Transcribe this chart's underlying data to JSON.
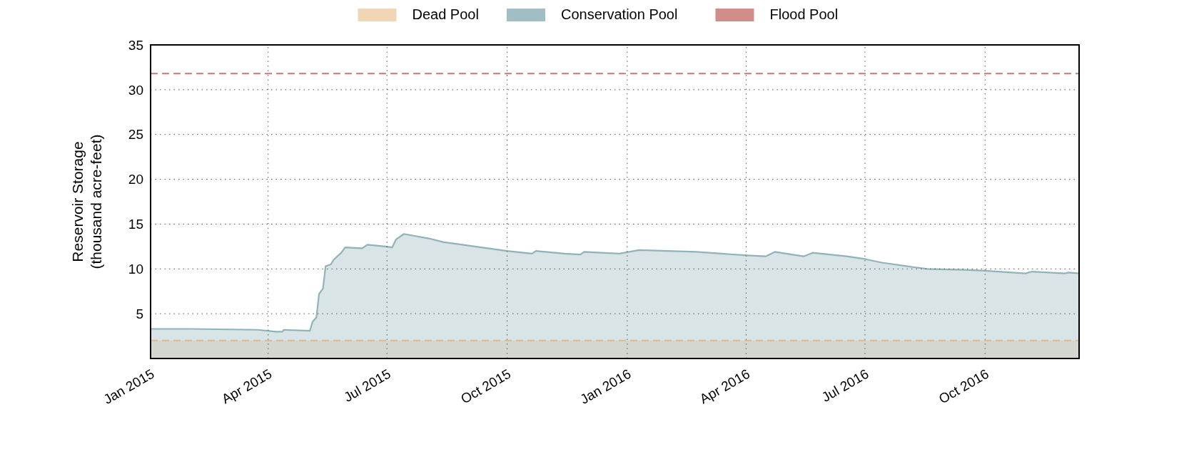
{
  "chart_data": {
    "type": "area",
    "ylabel": "Reservoir Storage\n(thousand acre-feet)",
    "xlim": [
      "2015-01-01",
      "2016-12-12"
    ],
    "xticks": [
      {
        "value": "2015-01-01",
        "label": "Jan 2015"
      },
      {
        "value": "2015-04-01",
        "label": "Apr 2015"
      },
      {
        "value": "2015-07-01",
        "label": "Jul 2015"
      },
      {
        "value": "2015-10-01",
        "label": "Oct 2015"
      },
      {
        "value": "2016-01-01",
        "label": "Jan 2016"
      },
      {
        "value": "2016-04-01",
        "label": "Apr 2016"
      },
      {
        "value": "2016-07-01",
        "label": "Jul 2016"
      },
      {
        "value": "2016-10-01",
        "label": "Oct 2016"
      }
    ],
    "ylim": [
      0,
      35
    ],
    "yticks": [
      5,
      10,
      15,
      20,
      25,
      30,
      35
    ],
    "grid": true,
    "legend": "top",
    "series": [
      {
        "name": "Conservation Pool",
        "color": "#8fb3b8",
        "x": [
          "2015-01-01",
          "2015-02-01",
          "2015-03-24",
          "2015-04-07",
          "2015-04-12",
          "2015-04-13",
          "2015-05-03",
          "2015-05-05",
          "2015-05-08",
          "2015-05-10",
          "2015-05-13",
          "2015-05-15",
          "2015-05-19",
          "2015-05-21",
          "2015-05-27",
          "2015-05-30",
          "2015-06-12",
          "2015-06-16",
          "2015-06-30",
          "2015-07-05",
          "2015-07-08",
          "2015-07-14",
          "2015-08-02",
          "2015-08-13",
          "2015-10-01",
          "2015-10-20",
          "2015-10-23",
          "2015-11-14",
          "2015-11-26",
          "2015-11-29",
          "2015-12-26",
          "2016-01-10",
          "2016-02-23",
          "2016-04-02",
          "2016-04-16",
          "2016-04-23",
          "2016-05-15",
          "2016-05-22",
          "2016-06-17",
          "2016-07-01",
          "2016-07-14",
          "2016-08-07",
          "2016-08-18",
          "2016-09-16",
          "2016-10-01",
          "2016-11-01",
          "2016-11-06",
          "2016-12-01",
          "2016-12-04",
          "2016-12-12"
        ],
        "values": [
          3.3,
          3.3,
          3.2,
          3.0,
          3.0,
          3.2,
          3.1,
          4.1,
          4.6,
          7.2,
          7.8,
          10.3,
          10.5,
          11.0,
          11.8,
          12.4,
          12.3,
          12.7,
          12.5,
          12.4,
          13.3,
          13.9,
          13.4,
          13.0,
          12.0,
          11.7,
          12.0,
          11.7,
          11.6,
          11.9,
          11.7,
          12.1,
          11.9,
          11.5,
          11.4,
          11.9,
          11.4,
          11.8,
          11.4,
          11.1,
          10.7,
          10.2,
          10.0,
          9.9,
          9.8,
          9.5,
          9.7,
          9.5,
          9.6,
          9.5
        ]
      }
    ],
    "bands": [
      {
        "axis": "y",
        "from": 0,
        "to": 2,
        "label": "Dead Pool",
        "color": "#efcfa8"
      }
    ],
    "ref_lines": [
      {
        "axis": "y",
        "value": 2,
        "color": "#d9bc94",
        "line_style": "dashed"
      },
      {
        "axis": "y",
        "value": 31.8,
        "label": "Flood Pool",
        "color": "#c87a75",
        "line_style": "dashed"
      }
    ]
  }
}
